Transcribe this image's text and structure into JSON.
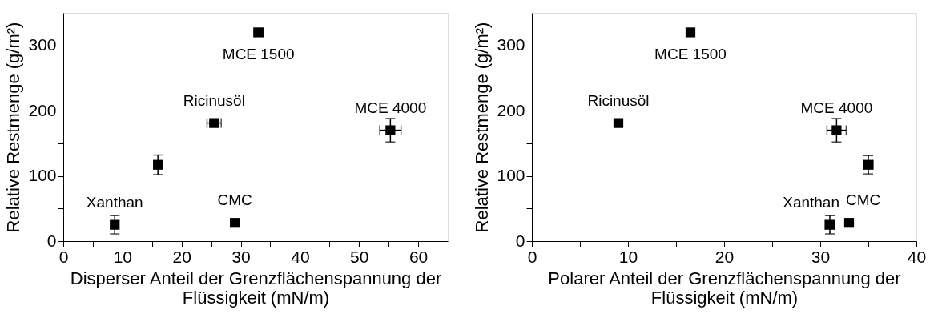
{
  "chart_data": [
    {
      "type": "scatter",
      "xlabel": "Disperser Anteil der Grenzflächenspannung der Flüssigkeit (mN/m)",
      "ylabel": "Relative Restmenge (g/m²)",
      "x": [
        8.7,
        16,
        25.5,
        29,
        33,
        55.3
      ],
      "series": [
        {
          "color": "#000000",
          "values": [
            25,
            117,
            181,
            28,
            320,
            170
          ],
          "errors": [
            14,
            15,
            3,
            5,
            3,
            18
          ],
          "xerrors": [
            null,
            null,
            1.2,
            null,
            0.8,
            1.8
          ]
        }
      ],
      "marker": "square",
      "grid": false,
      "xlim": [
        0,
        65
      ],
      "xticks": [
        0,
        {
          "value": 5,
          "label": null
        },
        10,
        {
          "value": 15,
          "label": null
        },
        20,
        {
          "value": 25,
          "label": null
        },
        30,
        {
          "value": 35,
          "label": null
        },
        40,
        {
          "value": 45,
          "label": null
        },
        50,
        {
          "value": 55,
          "label": null
        },
        60
      ],
      "ylim": [
        0,
        350
      ],
      "yticks": [
        0,
        {
          "value": 50,
          "label": null
        },
        100,
        {
          "value": 150,
          "label": null
        },
        200,
        {
          "value": 250,
          "label": null
        },
        300
      ],
      "annotations": [
        {
          "text": "Xanthan",
          "x": 8.7,
          "y": 25
        },
        {
          "text": "Ricinusöl",
          "x": 25.5,
          "y": 181
        },
        {
          "text": "CMC",
          "x": 29,
          "y": 28
        },
        {
          "text": "MCE 1500",
          "x": 33,
          "y": 320
        },
        {
          "text": "MCE 4000",
          "x": 55.3,
          "y": 170
        }
      ]
    },
    {
      "type": "scatter",
      "xlabel": "Polarer Anteil der Grenzflächenspannung der Flüssigkeit (mN/m)",
      "ylabel": "Relative Restmenge (g/m²)",
      "x": [
        31,
        35,
        9,
        33,
        16.5,
        31.7
      ],
      "series": [
        {
          "color": "#000000",
          "values": [
            25,
            117,
            181,
            28,
            320,
            170
          ],
          "errors": [
            14,
            14,
            3,
            5,
            3,
            18
          ],
          "xerrors": [
            0.5,
            0.5,
            null,
            null,
            null,
            1
          ]
        }
      ],
      "marker": "square",
      "grid": false,
      "xlim": [
        0,
        40
      ],
      "xticks": [
        0,
        {
          "value": 5,
          "label": null
        },
        10,
        {
          "value": 15,
          "label": null
        },
        20,
        {
          "value": 25,
          "label": null
        },
        30,
        {
          "value": 35,
          "label": null
        },
        40
      ],
      "ylim": [
        0,
        350
      ],
      "yticks": [
        0,
        {
          "value": 50,
          "label": null
        },
        100,
        {
          "value": 150,
          "label": null
        },
        200,
        {
          "value": 250,
          "label": null
        },
        300
      ],
      "annotations": [
        {
          "text": "Xanthan",
          "x": 31,
          "y": 25
        },
        {
          "text": "Ricinusöl",
          "x": 9,
          "y": 181
        },
        {
          "text": "CMC",
          "x": 33,
          "y": 28
        },
        {
          "text": "MCE 1500",
          "x": 16.5,
          "y": 320
        },
        {
          "text": "MCE 4000",
          "x": 31.7,
          "y": 170
        }
      ]
    }
  ]
}
